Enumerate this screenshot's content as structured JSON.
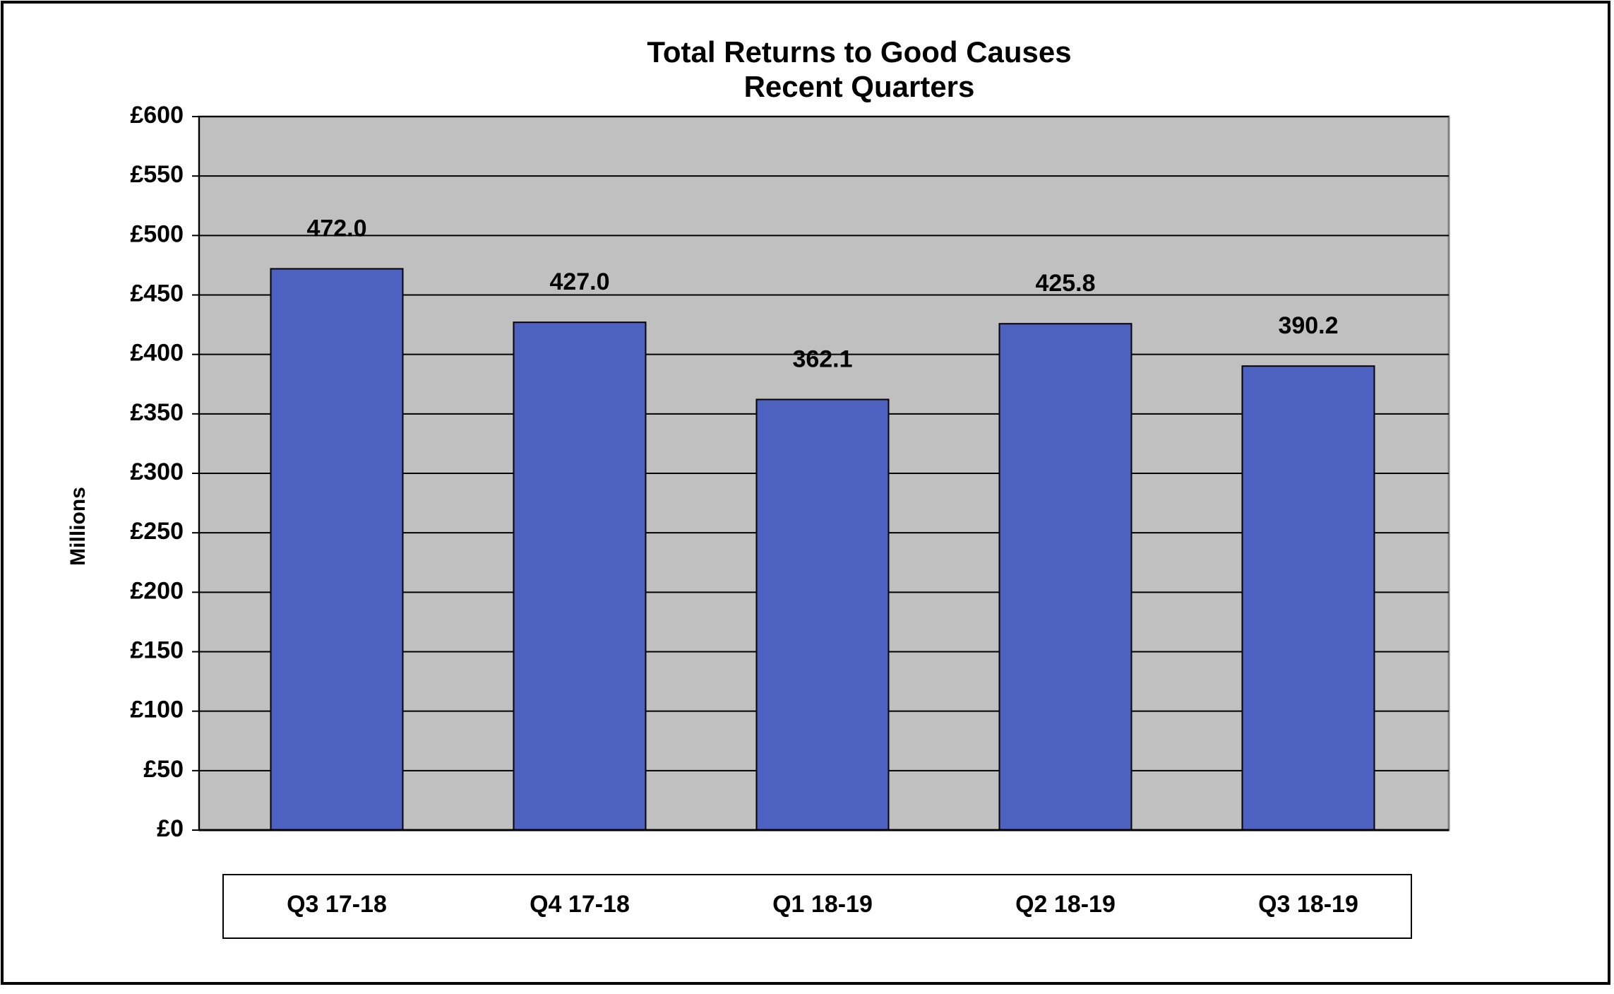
{
  "chart_data": {
    "type": "bar",
    "title": "Total Returns to Good Causes",
    "subtitle": "Recent Quarters",
    "y_label": "Millions",
    "categories": [
      "Q3 17-18",
      "Q4 17-18",
      "Q1 18-19",
      "Q2 18-19",
      "Q3 18-19"
    ],
    "values": [
      472.0,
      427.0,
      362.1,
      425.8,
      390.2
    ],
    "value_labels": [
      "472.0",
      "427.0",
      "362.1",
      "425.8",
      "390.2"
    ],
    "color": "#4d61c0",
    "ylim": [
      0,
      600
    ],
    "yticks": [
      {
        "value": 0,
        "label": "£0"
      },
      {
        "value": 50,
        "label": "£50"
      },
      {
        "value": 100,
        "label": "£100"
      },
      {
        "value": 150,
        "label": "£150"
      },
      {
        "value": 200,
        "label": "£200"
      },
      {
        "value": 250,
        "label": "£250"
      },
      {
        "value": 300,
        "label": "£300"
      },
      {
        "value": 350,
        "label": "£350"
      },
      {
        "value": 400,
        "label": "£400"
      },
      {
        "value": 450,
        "label": "£450"
      },
      {
        "value": 500,
        "label": "£500"
      },
      {
        "value": 550,
        "label": "£550"
      },
      {
        "value": 600,
        "label": "£600"
      }
    ],
    "grid": true
  }
}
